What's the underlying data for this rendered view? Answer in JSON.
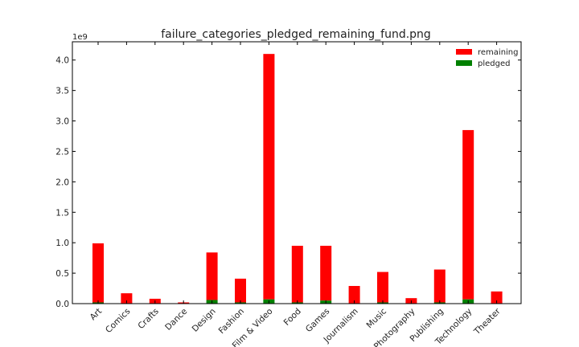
{
  "chart_data": {
    "type": "bar",
    "stacked": true,
    "title": "failure_categories_pledged_remaining_fund.png",
    "xlabel": "",
    "ylabel": "",
    "y_offset_label": "1e9",
    "ylim": [
      0,
      4.3
    ],
    "yticks": [
      0.0,
      0.5,
      1.0,
      1.5,
      2.0,
      2.5,
      3.0,
      3.5,
      4.0
    ],
    "ytick_labels": [
      "0.0",
      "0.5",
      "1.0",
      "1.5",
      "2.0",
      "2.5",
      "3.0",
      "3.5",
      "4.0"
    ],
    "grid": false,
    "legend_position": "top-right",
    "categories": [
      "Art",
      "Comics",
      "Crafts",
      "Dance",
      "Design",
      "Fashion",
      "Film & Video",
      "Food",
      "Games",
      "Journalism",
      "Music",
      "Photography",
      "Publishing",
      "Technology",
      "Theater"
    ],
    "series": [
      {
        "name": "pledged",
        "color": "#008000",
        "values": [
          0.02,
          0.005,
          0.003,
          0.002,
          0.06,
          0.02,
          0.07,
          0.02,
          0.05,
          0.005,
          0.02,
          0.005,
          0.02,
          0.07,
          0.005
        ]
      },
      {
        "name": "remaining",
        "color": "#ff0000",
        "values": [
          0.97,
          0.165,
          0.077,
          0.018,
          0.78,
          0.39,
          4.03,
          0.93,
          0.9,
          0.285,
          0.5,
          0.085,
          0.54,
          2.78,
          0.195
        ]
      }
    ],
    "legend": [
      {
        "name": "remaining",
        "color": "#ff0000"
      },
      {
        "name": "pledged",
        "color": "#008000"
      }
    ]
  }
}
